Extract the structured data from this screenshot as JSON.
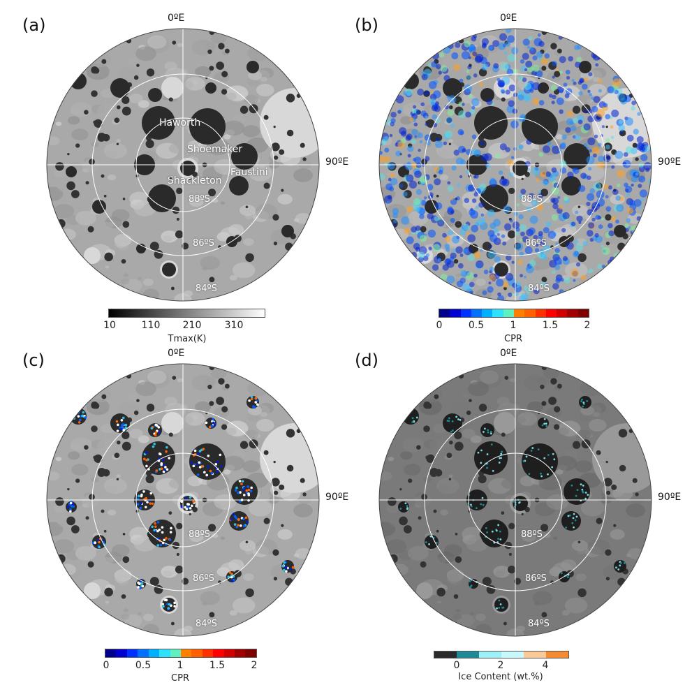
{
  "panels": [
    {
      "id": "a",
      "label": "(a)",
      "style": "gray"
    },
    {
      "id": "b",
      "label": "(b)",
      "style": "cpr-overlay"
    },
    {
      "id": "c",
      "label": "(c)",
      "style": "cpr-psr"
    },
    {
      "id": "d",
      "label": "(d)",
      "style": "ice"
    }
  ],
  "grid_labels": {
    "top": "0ºE",
    "right": "90ºE",
    "lat88": "88ºS",
    "lat86": "86ºS",
    "lat84": "84ºS"
  },
  "craters": {
    "haworth": "Haworth",
    "shoemaker": "Shoemaker",
    "faustini": "Faustini",
    "shackleton": "Shackleton"
  },
  "colorbars": {
    "a": {
      "label": "Tmax(K)",
      "ticks": [
        "10",
        "110",
        "210",
        "310"
      ],
      "colors": [
        "#000000",
        "#ffffff"
      ]
    },
    "b": {
      "label": "CPR",
      "ticks": [
        "0",
        "0.5",
        "1",
        "1.5",
        "2"
      ],
      "colors": [
        "#00008f",
        "#0000d0",
        "#0030ff",
        "#0070ff",
        "#00b0ff",
        "#30e0ff",
        "#60f0c0",
        "#ff8000",
        "#ff6000",
        "#ff3000",
        "#ff0000",
        "#d00000",
        "#a00000",
        "#800000"
      ]
    },
    "c": {
      "label": "CPR",
      "ticks": [
        "0",
        "0.5",
        "1",
        "1.5",
        "2"
      ],
      "colors": [
        "#00008f",
        "#0000d0",
        "#0030ff",
        "#0070ff",
        "#00b0ff",
        "#30e0ff",
        "#60f0c0",
        "#ff8000",
        "#ff6000",
        "#ff3000",
        "#ff0000",
        "#d00000",
        "#a00000",
        "#800000"
      ]
    },
    "d": {
      "label": "Ice Content (wt.%)",
      "ticks": [
        "0",
        "2",
        "4"
      ],
      "colors": [
        "#2a2a2a",
        "#1e8a95",
        "#9ef0f8",
        "#c8f8fb",
        "#fbc898",
        "#f58b30"
      ]
    }
  }
}
